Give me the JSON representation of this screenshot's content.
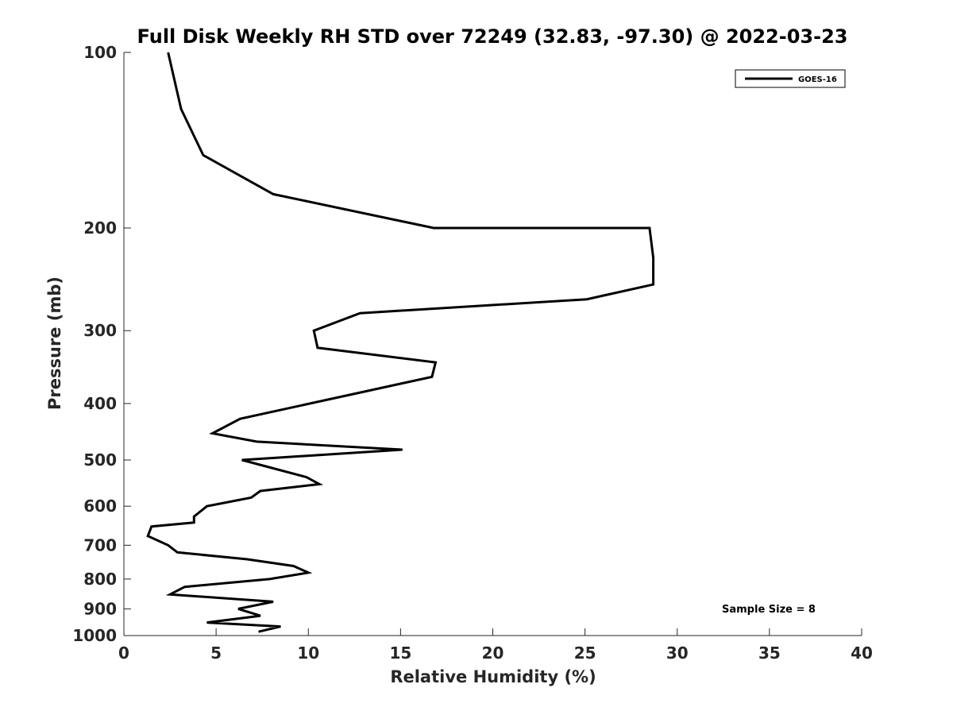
{
  "chart_data": {
    "type": "line",
    "title": "Full Disk Weekly RH STD over 72249 (32.83, -97.30) @ 2022-03-23",
    "xlabel": "Relative Humidity (%)",
    "ylabel": "Pressure (mb)",
    "xlim": [
      0,
      40
    ],
    "ylim": [
      100,
      1000
    ],
    "yscale": "log",
    "yreversed": true,
    "grid": false,
    "legend_position": "top-right",
    "xticks": [
      0,
      5,
      10,
      15,
      20,
      25,
      30,
      35,
      40
    ],
    "yticks": [
      100,
      200,
      300,
      400,
      500,
      600,
      700,
      800,
      900,
      1000
    ],
    "annotation": "Sample Size = 8",
    "series": [
      {
        "name": "GOES-16",
        "color": "#000000",
        "points": [
          [
            2.4,
            100
          ],
          [
            3.1,
            125
          ],
          [
            4.3,
            150
          ],
          [
            8.1,
            175
          ],
          [
            16.8,
            200
          ],
          [
            28.5,
            200
          ],
          [
            28.7,
            225
          ],
          [
            28.7,
            250
          ],
          [
            25.1,
            265
          ],
          [
            12.8,
            280
          ],
          [
            10.3,
            300
          ],
          [
            10.5,
            321
          ],
          [
            16.9,
            340
          ],
          [
            16.7,
            360
          ],
          [
            13.3,
            380
          ],
          [
            6.3,
            425
          ],
          [
            4.8,
            450
          ],
          [
            7.2,
            465
          ],
          [
            15.1,
            480
          ],
          [
            6.4,
            500
          ],
          [
            9.9,
            535
          ],
          [
            10.6,
            550
          ],
          [
            7.4,
            565
          ],
          [
            6.9,
            580
          ],
          [
            4.5,
            600
          ],
          [
            3.8,
            625
          ],
          [
            3.8,
            640
          ],
          [
            1.5,
            650
          ],
          [
            1.3,
            675
          ],
          [
            2.4,
            700
          ],
          [
            2.9,
            720
          ],
          [
            6.7,
            740
          ],
          [
            9.2,
            760
          ],
          [
            10.0,
            780
          ],
          [
            7.9,
            800
          ],
          [
            3.3,
            825
          ],
          [
            2.5,
            850
          ],
          [
            8.1,
            875
          ],
          [
            6.2,
            900
          ],
          [
            7.4,
            925
          ],
          [
            4.5,
            950
          ],
          [
            8.5,
            965
          ],
          [
            7.3,
            985
          ]
        ]
      }
    ]
  }
}
